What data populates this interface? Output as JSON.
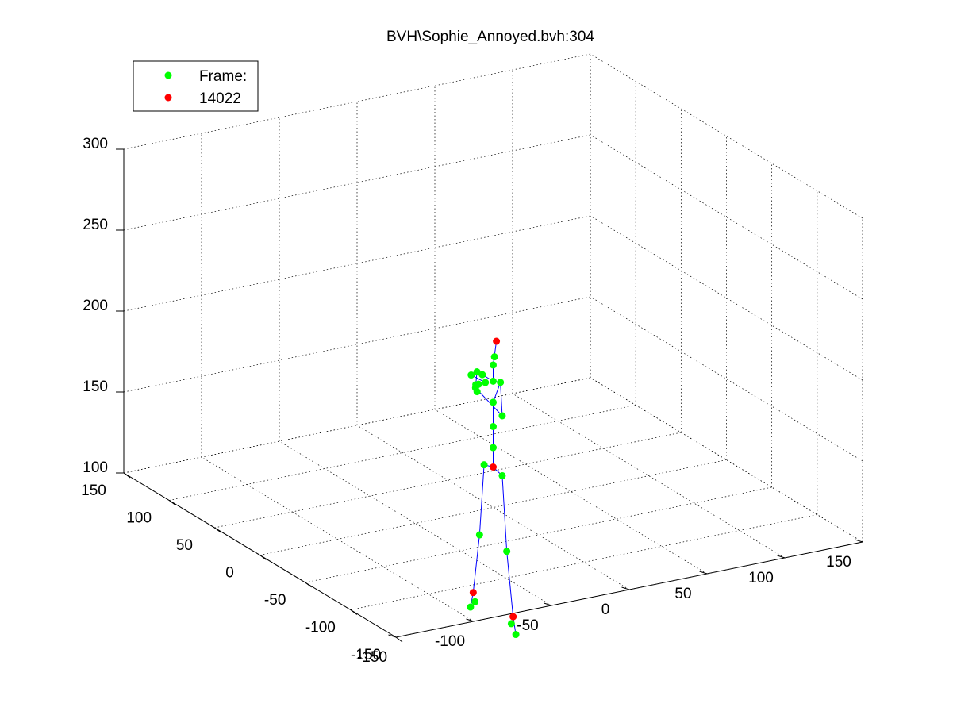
{
  "chart_data": {
    "type": "scatter",
    "title": "BVH\\Sophie_Annoyed.bvh:304",
    "xlabel": "",
    "ylabel": "",
    "zlabel": "",
    "x_ticks": [
      "-150",
      "-100",
      "-50",
      "0",
      "50",
      "100",
      "150"
    ],
    "y_ticks": [
      "-150",
      "-100",
      "-50",
      "0",
      "50",
      "100",
      "150"
    ],
    "z_ticks": [
      "100",
      "150",
      "200",
      "250",
      "300"
    ],
    "xlim": [
      -150,
      150
    ],
    "ylim": [
      -150,
      150
    ],
    "zlim": [
      100,
      300
    ],
    "grid": true,
    "legend_position": "top-left",
    "legend": [
      {
        "label": "Frame:",
        "color": "#00ff00"
      },
      {
        "label": "14022",
        "color": "#ff0000"
      }
    ],
    "line_color": "#0000ff",
    "series": [
      {
        "name": "Frame:",
        "color": "#00ff00",
        "points": [
          {
            "id": "hip_l",
            "x": 0,
            "y": -10,
            "z": 123
          },
          {
            "id": "hip_r",
            "x": 0,
            "y": 10,
            "z": 123
          },
          {
            "id": "spine1",
            "x": 0,
            "y": 0,
            "z": 137
          },
          {
            "id": "spine2",
            "x": 0,
            "y": 0,
            "z": 150
          },
          {
            "id": "spine3",
            "x": 0,
            "y": 0,
            "z": 165
          },
          {
            "id": "neck",
            "x": 0,
            "y": 0,
            "z": 178
          },
          {
            "id": "head",
            "x": 0,
            "y": 0,
            "z": 188
          },
          {
            "id": "head2",
            "x": 2,
            "y": 2,
            "z": 192
          },
          {
            "id": "chest_l",
            "x": 0,
            "y": -8,
            "z": 180
          },
          {
            "id": "chest_r",
            "x": 0,
            "y": 12,
            "z": 178
          },
          {
            "id": "shoulder_l",
            "x": 0,
            "y": -10,
            "z": 160
          },
          {
            "id": "knee_l",
            "x": 0,
            "y": -15,
            "z": 78
          },
          {
            "id": "ankle_l",
            "x": 0,
            "y": -20,
            "z": 35
          },
          {
            "id": "toe_l",
            "x": 0,
            "y": -25,
            "z": 30
          },
          {
            "id": "knee_r",
            "x": 0,
            "y": 15,
            "z": 78
          },
          {
            "id": "ankle_r",
            "x": 0,
            "y": 20,
            "z": 35
          },
          {
            "id": "toe_r",
            "x": 0,
            "y": 25,
            "z": 30
          },
          {
            "id": "elbow_r",
            "x": 10,
            "y": 35,
            "z": 170
          },
          {
            "id": "wrist_r",
            "x": 15,
            "y": 50,
            "z": 162
          },
          {
            "id": "wrist_l",
            "x": 12,
            "y": 40,
            "z": 158
          },
          {
            "id": "hand_l",
            "x": 20,
            "y": 52,
            "z": 150
          },
          {
            "id": "hand_r1",
            "x": 25,
            "y": 62,
            "z": 150
          },
          {
            "id": "hand_r2",
            "x": 28,
            "y": 64,
            "z": 149
          },
          {
            "id": "hand_r3",
            "x": 30,
            "y": 60,
            "z": 151
          }
        ]
      },
      {
        "name": "14022",
        "color": "#ff0000",
        "points": [
          {
            "id": "root",
            "x": 0,
            "y": 0,
            "z": 125
          },
          {
            "id": "head_top",
            "x": 5,
            "y": 5,
            "z": 200
          },
          {
            "id": "foot_l",
            "x": 0,
            "y": -22,
            "z": 40
          },
          {
            "id": "foot_r",
            "x": 0,
            "y": 22,
            "z": 40
          }
        ]
      }
    ]
  }
}
